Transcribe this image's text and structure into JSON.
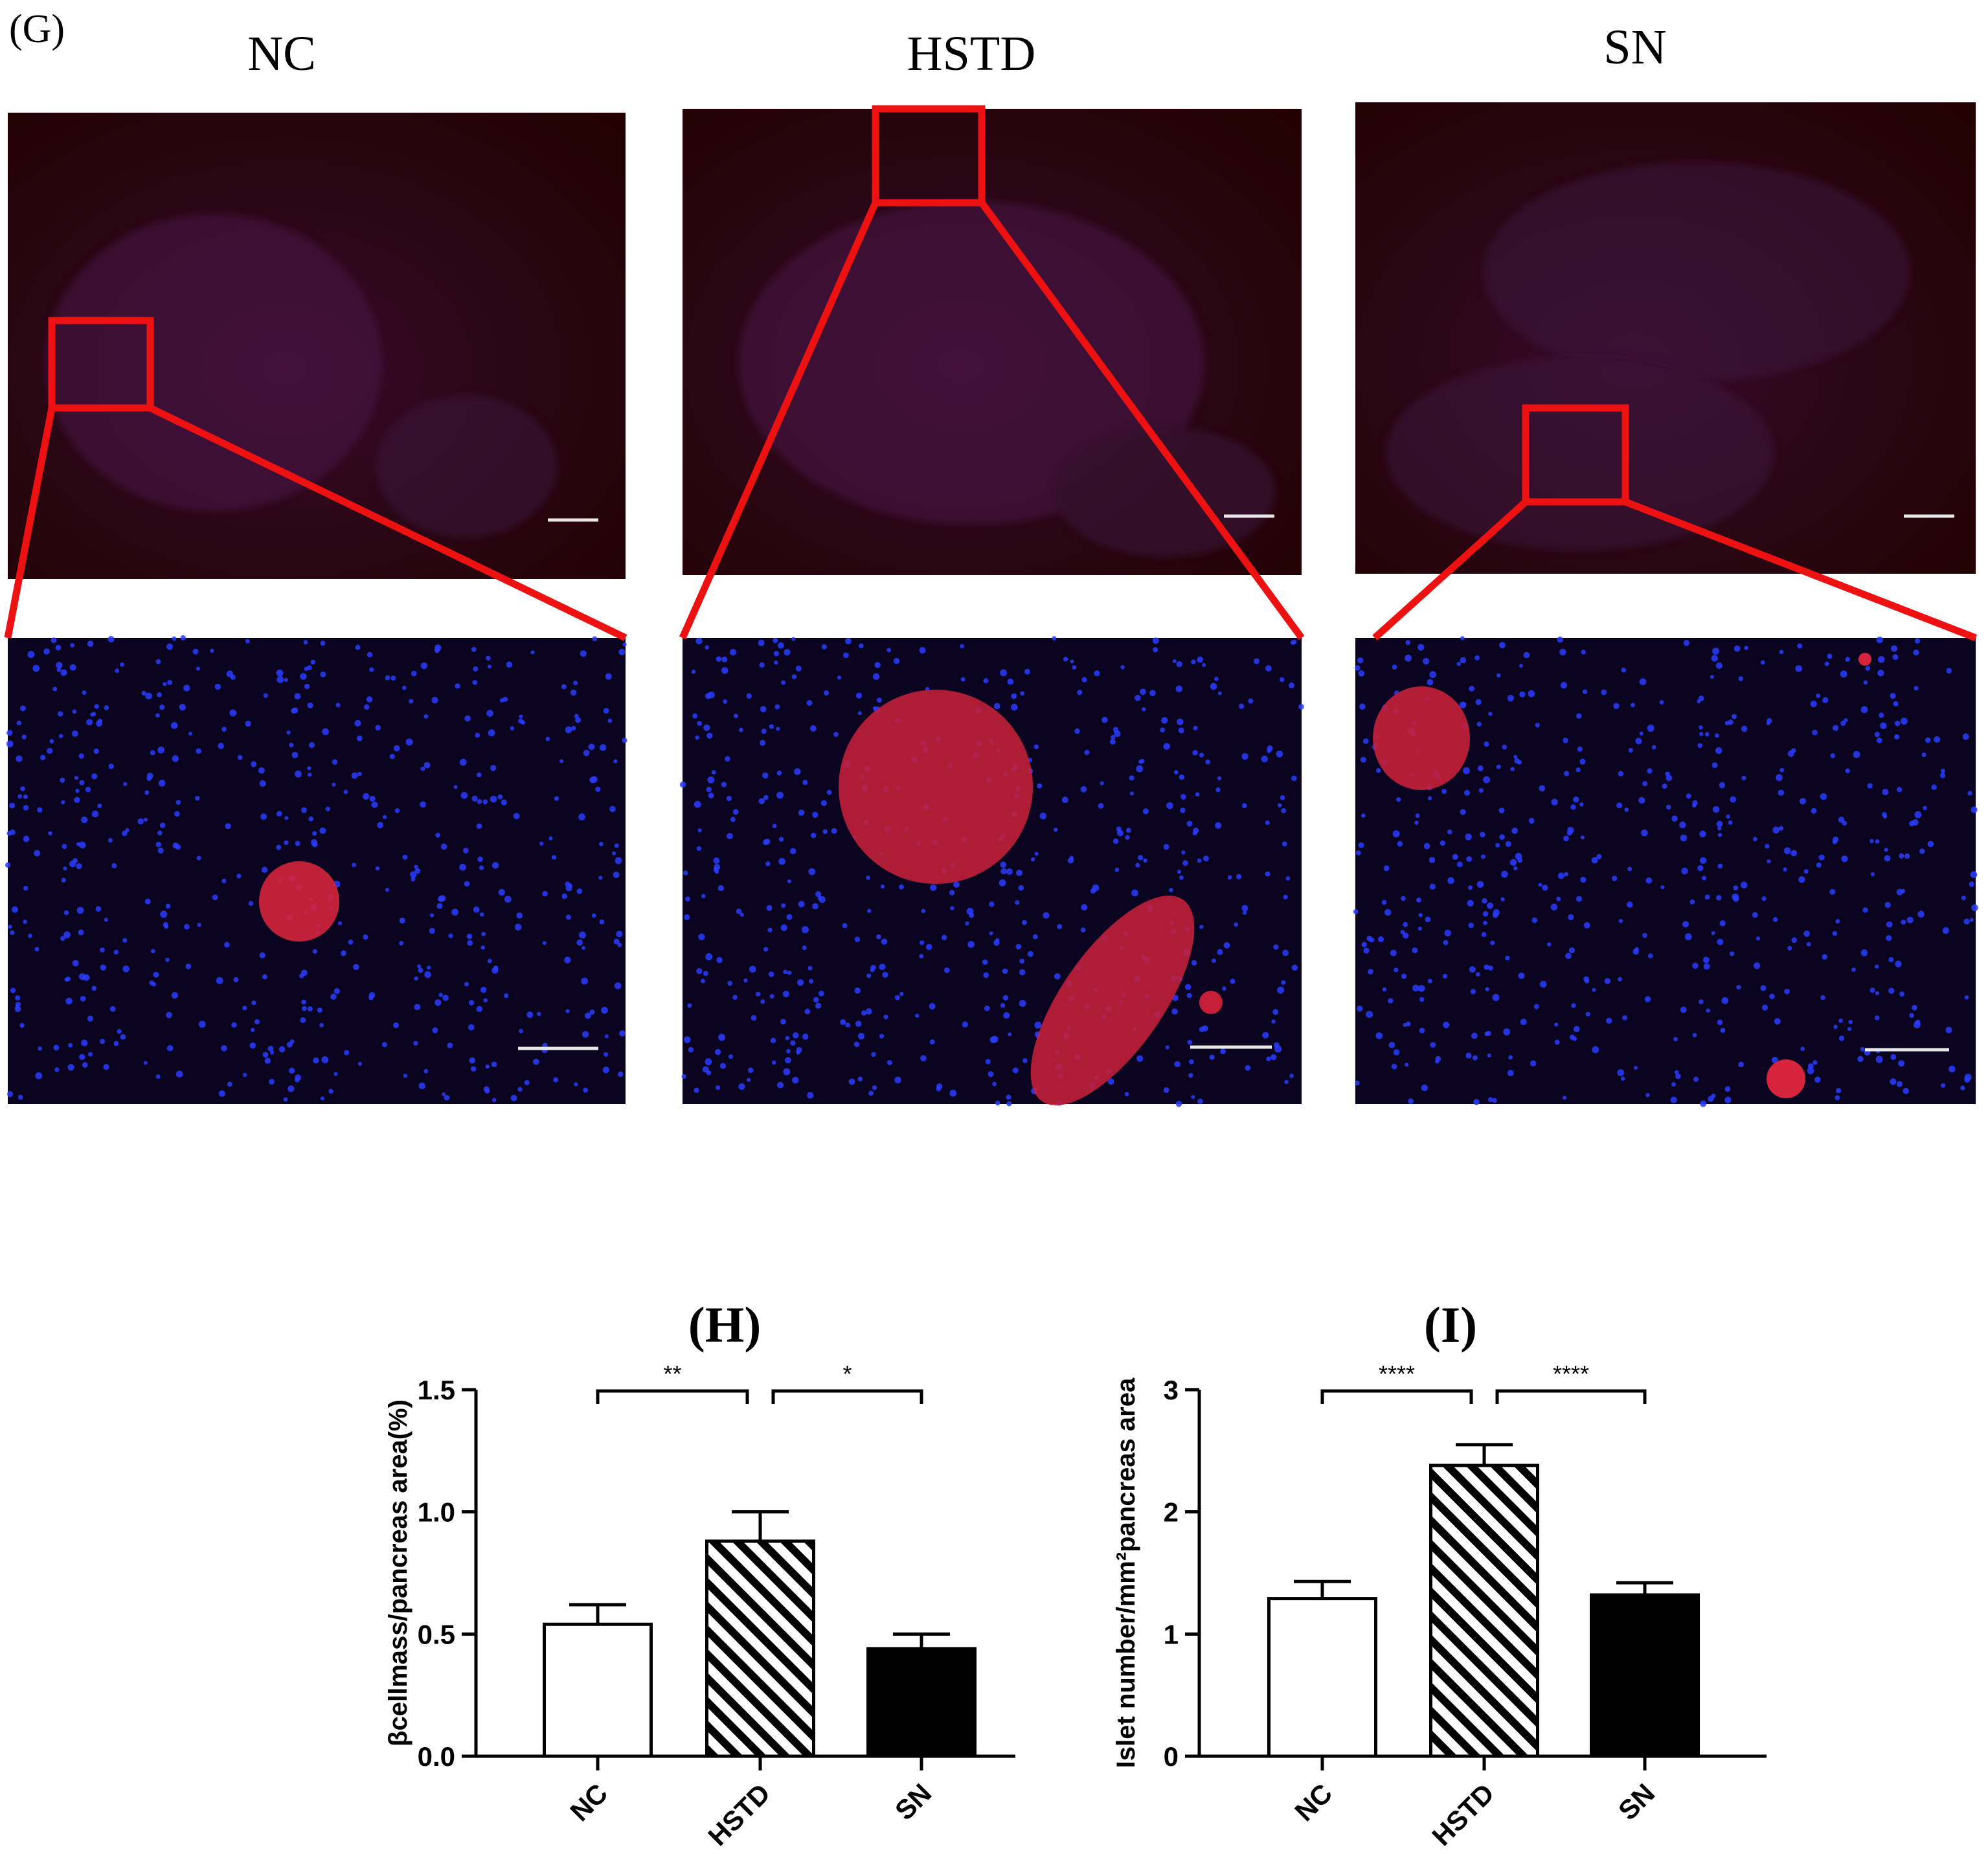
{
  "panel_g": {
    "letter": "(G)",
    "groups": [
      "NC",
      "HSTD",
      "SN"
    ]
  },
  "chart_data": [
    {
      "type": "bar",
      "panel_label": "(H)",
      "categories": [
        "NC",
        "HSTD",
        "SN"
      ],
      "values": [
        0.54,
        0.88,
        0.44
      ],
      "errors": [
        0.08,
        0.12,
        0.06
      ],
      "fills": [
        "white",
        "hatched",
        "black"
      ],
      "ylabel": "βcellmass/pancreas area(%)",
      "ylim": [
        0,
        1.5
      ],
      "yticks": [
        "0.0",
        "0.5",
        "1.0",
        "1.5"
      ],
      "significance": [
        {
          "from": "NC",
          "to": "HSTD",
          "label": "**"
        },
        {
          "from": "HSTD",
          "to": "SN",
          "label": "*"
        }
      ]
    },
    {
      "type": "bar",
      "panel_label": "(I)",
      "categories": [
        "NC",
        "HSTD",
        "SN"
      ],
      "values": [
        1.29,
        2.38,
        1.32
      ],
      "errors": [
        0.14,
        0.17,
        0.1
      ],
      "fills": [
        "white",
        "hatched",
        "black"
      ],
      "ylabel": "Islet number/mm²pancreas area",
      "ylim": [
        0,
        3
      ],
      "yticks": [
        "0",
        "1",
        "2",
        "3"
      ],
      "significance": [
        {
          "from": "NC",
          "to": "HSTD",
          "label": "****"
        },
        {
          "from": "HSTD",
          "to": "SN",
          "label": "****"
        }
      ]
    }
  ]
}
